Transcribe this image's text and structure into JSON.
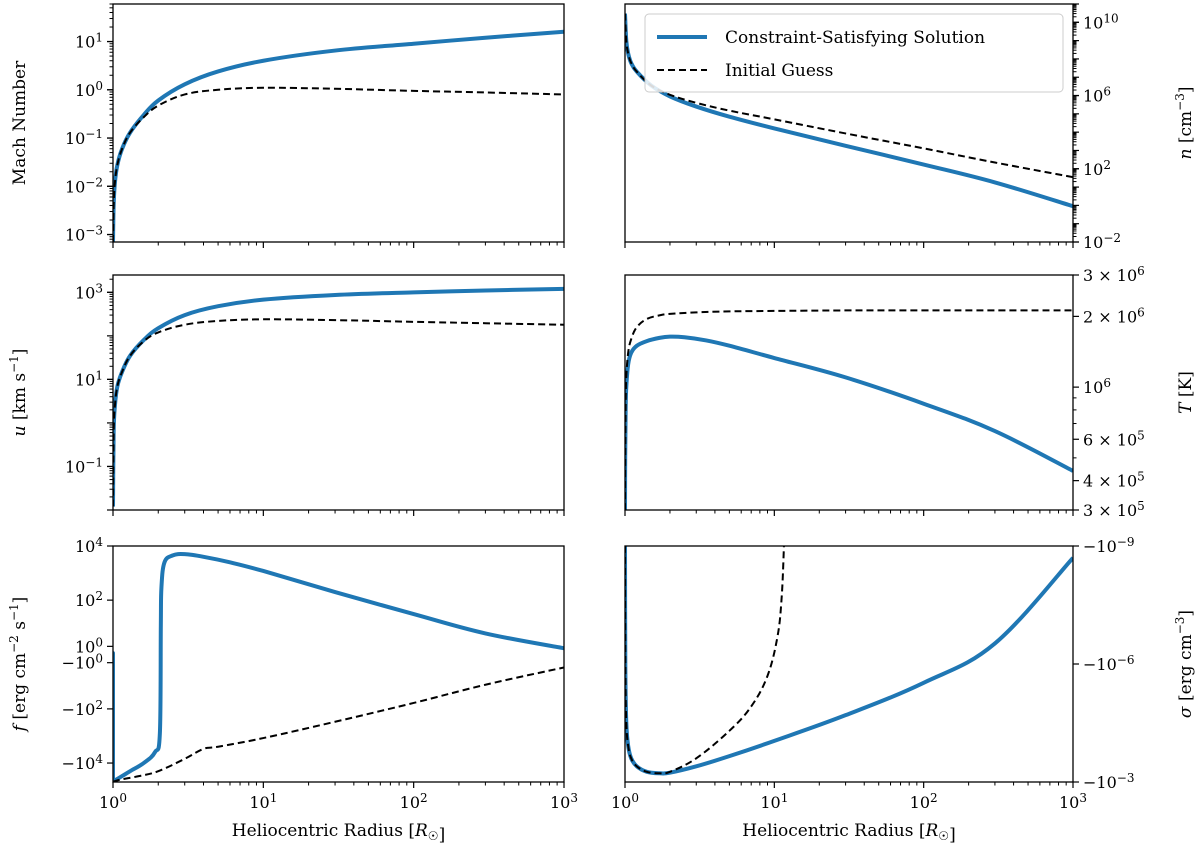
{
  "colors": {
    "solution": "#1f77b4",
    "guess": "#000000",
    "axis": "#000000"
  },
  "legend": {
    "location": "top-right of top-right panel",
    "entries": [
      {
        "label": "Constraint-Satisfying Solution",
        "style": "solid-blue"
      },
      {
        "label": "Initial Guess",
        "style": "dashed-black"
      }
    ]
  },
  "xlabel": "Heliocentric Radius [R☉]",
  "chart_data": [
    {
      "id": "mach",
      "type": "line",
      "xscale": "log",
      "yscale": "log",
      "xlim": [
        1,
        1000
      ],
      "ylim": [
        0.0007,
        60
      ],
      "ylabel_side": "left",
      "ylabel": "Mach Number",
      "yticks": [
        {
          "v": 0.001,
          "label": "10^-3"
        },
        {
          "v": 0.01,
          "label": "10^-2"
        },
        {
          "v": 0.1,
          "label": "10^-1"
        },
        {
          "v": 1,
          "label": "10^0"
        },
        {
          "v": 10,
          "label": "10^1"
        }
      ],
      "series": [
        {
          "name": "Constraint-Satisfying Solution",
          "x": [
            1.0,
            1.01,
            1.03,
            1.07,
            1.15,
            1.3,
            1.6,
            2.0,
            3.0,
            5.0,
            10,
            30,
            100,
            300,
            1000
          ],
          "y": [
            0.0007,
            0.004,
            0.012,
            0.028,
            0.06,
            0.13,
            0.3,
            0.6,
            1.3,
            2.4,
            4.0,
            6.5,
            9.0,
            12,
            16
          ]
        },
        {
          "name": "Initial Guess",
          "x": [
            1.0,
            1.01,
            1.03,
            1.07,
            1.15,
            1.3,
            1.6,
            2.0,
            3.0,
            5.0,
            10,
            30,
            100,
            300,
            1000
          ],
          "y": [
            0.0007,
            0.004,
            0.012,
            0.028,
            0.06,
            0.13,
            0.27,
            0.47,
            0.8,
            1.0,
            1.1,
            1.05,
            0.95,
            0.88,
            0.8
          ]
        }
      ]
    },
    {
      "id": "density",
      "type": "line",
      "xscale": "log",
      "yscale": "log",
      "xlim": [
        1,
        1000
      ],
      "ylim": [
        0.01,
        100000000000
      ],
      "ylabel_side": "right",
      "ylabel": "n [cm^-3]",
      "yticks": [
        {
          "v": 0.01,
          "label": "10^-2"
        },
        {
          "v": 100,
          "label": "10^2"
        },
        {
          "v": 1000000,
          "label": "10^6"
        },
        {
          "v": 10000000000,
          "label": "10^10"
        }
      ],
      "series": [
        {
          "name": "Constraint-Satisfying Solution",
          "x": [
            1.0,
            1.02,
            1.05,
            1.1,
            1.2,
            1.5,
            2.0,
            3.0,
            5.0,
            10,
            30,
            100,
            300,
            1000
          ],
          "y": [
            30000000000,
            1000000000,
            200000000,
            60000000,
            20000000,
            3500000,
            900000,
            250000,
            70000,
            16000,
            1800,
            170,
            18,
            0.9
          ]
        },
        {
          "name": "Initial Guess",
          "x": [
            1.0,
            1.02,
            1.05,
            1.1,
            1.2,
            1.5,
            2.0,
            3.0,
            5.0,
            10,
            30,
            100,
            300,
            1000
          ],
          "y": [
            30000000000,
            1000000000,
            200000000,
            60000000,
            20000000,
            3500000,
            1100000,
            400000,
            150000,
            50000,
            8500,
            1300,
            220,
            35
          ]
        }
      ]
    },
    {
      "id": "velocity",
      "type": "line",
      "xscale": "log",
      "yscale": "log",
      "xlim": [
        1,
        1000
      ],
      "ylim": [
        0.01,
        2500
      ],
      "ylabel_side": "left",
      "ylabel": "u [km s^-1]",
      "yticks": [
        {
          "v": 0.1,
          "label": "10^-1"
        },
        {
          "v": 10,
          "label": "10^1"
        },
        {
          "v": 1000,
          "label": "10^3"
        }
      ],
      "series": [
        {
          "name": "Constraint-Satisfying Solution",
          "x": [
            1.0,
            1.01,
            1.03,
            1.07,
            1.15,
            1.3,
            1.6,
            2.0,
            3.0,
            5.0,
            10,
            30,
            100,
            300,
            1000
          ],
          "y": [
            0.012,
            0.6,
            2.5,
            7,
            15,
            35,
            80,
            150,
            300,
            480,
            680,
            870,
            1000,
            1100,
            1200
          ]
        },
        {
          "name": "Initial Guess",
          "x": [
            1.0,
            1.01,
            1.03,
            1.07,
            1.15,
            1.3,
            1.6,
            2.0,
            3.0,
            5.0,
            10,
            30,
            100,
            300,
            1000
          ],
          "y": [
            0.012,
            0.6,
            2.5,
            7,
            15,
            35,
            75,
            120,
            180,
            220,
            240,
            230,
            210,
            195,
            180
          ]
        }
      ]
    },
    {
      "id": "temperature",
      "type": "line",
      "xscale": "log",
      "yscale": "log",
      "xlim": [
        1,
        1000
      ],
      "ylim": [
        300000,
        3000000
      ],
      "ylabel_side": "right",
      "ylabel": "T [K]",
      "yticks": [
        {
          "v": 300000,
          "label": "3 × 10^5"
        },
        {
          "v": 400000,
          "label": "4 × 10^5"
        },
        {
          "v": 600000,
          "label": "6 × 10^5"
        },
        {
          "v": 1000000,
          "label": "10^6"
        },
        {
          "v": 2000000,
          "label": "2 × 10^6"
        },
        {
          "v": 3000000,
          "label": "3 × 10^6"
        }
      ],
      "series": [
        {
          "name": "Constraint-Satisfying Solution",
          "x": [
            1.0,
            1.003,
            1.01,
            1.02,
            1.05,
            1.1,
            1.2,
            1.4,
            1.7,
            2.0,
            2.5,
            3.5,
            5,
            10,
            30,
            100,
            300,
            1000
          ],
          "y": [
            300000,
            500000,
            800000,
            1000000,
            1250000,
            1400000,
            1500000,
            1570000,
            1620000,
            1640000,
            1630000,
            1580000,
            1500000,
            1330000,
            1100000,
            850000,
            650000,
            440000
          ]
        },
        {
          "name": "Initial Guess",
          "x": [
            1.0,
            1.003,
            1.01,
            1.02,
            1.05,
            1.1,
            1.2,
            1.4,
            1.7,
            2.0,
            3.0,
            5.0,
            10,
            30,
            100,
            300,
            1000
          ],
          "y": [
            300000,
            500000,
            850000,
            1100000,
            1400000,
            1600000,
            1800000,
            1950000,
            2020000,
            2050000,
            2080000,
            2100000,
            2110000,
            2120000,
            2120000,
            2120000,
            2120000
          ]
        }
      ]
    },
    {
      "id": "heatflux",
      "type": "line",
      "xscale": "log",
      "yscale": "symlog",
      "linthresh": 1,
      "xlim": [
        1,
        1000
      ],
      "ylim": [
        -50000,
        10000
      ],
      "ylabel_side": "left",
      "ylabel": "f [erg cm^-2 s^-1]",
      "yticks": [
        {
          "v": 10000,
          "label": "10^4"
        },
        {
          "v": 100,
          "label": "10^2"
        },
        {
          "v": 1,
          "label": "10^0"
        },
        {
          "v": -1,
          "label": "−10^0"
        },
        {
          "v": -100,
          "label": "−10^2"
        },
        {
          "v": -10000,
          "label": "−10^4"
        }
      ],
      "series": [
        {
          "name": "Constraint-Satisfying Solution",
          "x": [
            1.0,
            1.0,
            1.0,
            1.02,
            1.1,
            1.3,
            1.6,
            1.9,
            2.05,
            2.08,
            2.1,
            2.2,
            2.5,
            3.0,
            4.0,
            6.0,
            10,
            30,
            100,
            300,
            1000
          ],
          "y": [
            -50000,
            0.13,
            -50000,
            -45000,
            -35000,
            -20000,
            -10000,
            -4000,
            -800,
            10,
            300,
            2500,
            4500,
            5000,
            4000,
            2500,
            1200,
            200,
            30,
            5,
            0.7
          ]
        },
        {
          "name": "Initial Guess",
          "x": [
            1.0,
            1.05,
            1.2,
            1.5,
            2.0,
            3.0,
            4.0,
            5.0,
            10,
            30,
            100,
            300,
            1000
          ],
          "y": [
            -50000,
            -45000,
            -38000,
            -30000,
            -20000,
            -7000,
            -3000,
            -2500,
            -1200,
            -300,
            -60,
            -12,
            -2
          ]
        }
      ]
    },
    {
      "id": "sigma",
      "type": "line",
      "xscale": "log",
      "yscale": "symlog-negative",
      "xlim": [
        1,
        1000
      ],
      "ylim": [
        -0.001,
        -1e-09
      ],
      "ylabel_side": "right",
      "ylabel": "σ [erg cm^-3]",
      "yticks": [
        {
          "v": -1e-09,
          "label": "−10^-9"
        },
        {
          "v": -1e-06,
          "label": "−10^-6"
        },
        {
          "v": -0.001,
          "label": "−10^-3"
        }
      ],
      "series": [
        {
          "name": "Constraint-Satisfying Solution",
          "x": [
            1.0,
            1.005,
            1.02,
            1.05,
            1.1,
            1.2,
            1.4,
            1.7,
            2.0,
            3.0,
            5.0,
            10,
            30,
            100,
            300,
            1000
          ],
          "y": [
            -1e-09,
            -1e-06,
            -3e-05,
            -0.00012,
            -0.00025,
            -0.0004,
            -0.00055,
            -0.0006,
            -0.00058,
            -0.0004,
            -0.00022,
            -9e-05,
            -2e-05,
            -3e-06,
            -3e-07,
            -2e-09
          ]
        },
        {
          "name": "Initial Guess",
          "x": [
            1.0,
            1.005,
            1.02,
            1.05,
            1.1,
            1.2,
            1.4,
            1.7,
            2.0,
            3.0,
            5.0,
            7.0,
            9.0,
            10.5,
            11.2,
            11.6
          ],
          "y": [
            -1e-09,
            -1e-06,
            -3e-05,
            -0.00012,
            -0.00025,
            -0.0004,
            -0.00055,
            -0.0006,
            -0.00055,
            -0.00025,
            -5e-05,
            -1.2e-05,
            -2e-06,
            -2e-07,
            -2e-08,
            -1e-09
          ]
        }
      ]
    }
  ]
}
